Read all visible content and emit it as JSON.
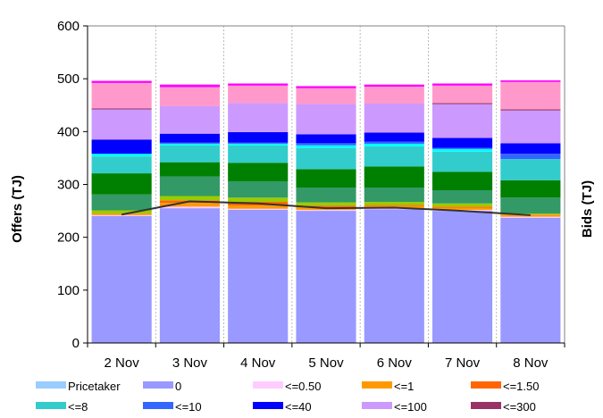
{
  "chart_data": {
    "type": "bar",
    "stacked": true,
    "categories": [
      "2 Nov",
      "3 Nov",
      "4 Nov",
      "5 Nov",
      "6 Nov",
      "7 Nov",
      "8 Nov"
    ],
    "ylabel": "Offers (TJ)",
    "y2label": "Bids (TJ)",
    "ylim": [
      0,
      600
    ],
    "yticks": [
      0,
      100,
      200,
      300,
      400,
      500,
      600
    ],
    "grid": "vertical-dashed",
    "legend": "bottom",
    "series": [
      {
        "name": "Pricetaker",
        "color": "#99ccff",
        "values": [
          0,
          0,
          0,
          0,
          0,
          0,
          0
        ]
      },
      {
        "name": "0",
        "color": "#9999ff",
        "values": [
          240,
          255,
          252,
          250,
          253,
          250,
          237
        ]
      },
      {
        "name": "<=0.50",
        "color": "#ffccff",
        "values": [
          2,
          3,
          2,
          2,
          2,
          2,
          2
        ]
      },
      {
        "name": "<=1",
        "color": "#ff9900",
        "values": [
          3,
          7,
          6,
          5,
          4,
          4,
          3
        ]
      },
      {
        "name": "<=1.50",
        "color": "#ff6600",
        "values": [
          0,
          5,
          7,
          3,
          2,
          2,
          1
        ]
      },
      {
        "name": "",
        "color": "#99cc00",
        "values": [
          6,
          8,
          8,
          6,
          6,
          6,
          2
        ]
      },
      {
        "name": "",
        "color": "#339966",
        "values": [
          30,
          37,
          31,
          28,
          27,
          25,
          30
        ]
      },
      {
        "name": "",
        "color": "#008000",
        "values": [
          40,
          27,
          35,
          35,
          40,
          35,
          33
        ]
      },
      {
        "name": "<=8",
        "color": "#33cccc",
        "values": [
          32,
          32,
          33,
          40,
          38,
          38,
          40
        ]
      },
      {
        "name": "",
        "color": "#00ffff",
        "values": [
          5,
          3,
          3,
          5,
          5,
          5,
          0
        ]
      },
      {
        "name": "<=10",
        "color": "#3366ff",
        "values": [
          0,
          2,
          2,
          4,
          4,
          2,
          10
        ]
      },
      {
        "name": "<=40",
        "color": "#0000ff",
        "values": [
          27,
          17,
          20,
          17,
          17,
          19,
          20
        ]
      },
      {
        "name": "<=100",
        "color": "#cc99ff",
        "values": [
          57,
          52,
          55,
          57,
          55,
          64,
          62
        ]
      },
      {
        "name": "<=300",
        "color": "#993366",
        "values": [
          2,
          0,
          0,
          0,
          0,
          2,
          2
        ]
      },
      {
        "name": "",
        "color": "#ff99cc",
        "values": [
          48,
          36,
          33,
          30,
          32,
          33,
          52
        ]
      },
      {
        "name": "",
        "color": "#ff00ff",
        "values": [
          4,
          5,
          4,
          4,
          4,
          4,
          3
        ]
      }
    ],
    "line_series": {
      "name": "",
      "color": "#333333",
      "values": [
        243,
        268,
        264,
        255,
        256,
        250,
        242
      ]
    }
  },
  "colors": {
    "gridline": "#aaaaaa",
    "axis": "#000000",
    "plot_border": "#808080"
  }
}
